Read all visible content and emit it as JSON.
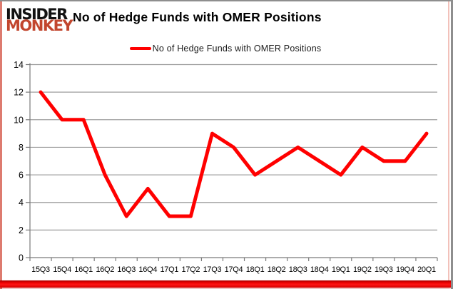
{
  "logo": {
    "line1": "INSIDER",
    "line2": "MONKEY",
    "line1_color": "#121212",
    "line2_color": "#c2462e"
  },
  "header": {
    "title": "No of Hedge Funds with OMER Positions"
  },
  "legend": {
    "label": "No of Hedge Funds with OMER Positions",
    "swatch_color": "#ff0000"
  },
  "chart_data": {
    "type": "line",
    "title": "No of Hedge Funds with OMER Positions",
    "categories": [
      "15Q3",
      "15Q4",
      "16Q1",
      "16Q2",
      "16Q3",
      "16Q4",
      "17Q1",
      "17Q2",
      "17Q3",
      "17Q4",
      "18Q1",
      "18Q2",
      "18Q3",
      "18Q4",
      "19Q1",
      "19Q2",
      "19Q3",
      "19Q4",
      "20Q1"
    ],
    "series": [
      {
        "name": "No of Hedge Funds with OMER Positions",
        "color": "#ff0000",
        "values": [
          12,
          10,
          10,
          6,
          3,
          5,
          3,
          3,
          9,
          8,
          6,
          7,
          8,
          7,
          6,
          8,
          7,
          7,
          9
        ]
      }
    ],
    "xlabel": "",
    "ylabel": "",
    "ylim": [
      0,
      14
    ],
    "yticks": [
      0,
      2,
      4,
      6,
      8,
      10,
      12,
      14
    ],
    "grid": true,
    "legend_position": "top",
    "gridline_color": "#9d9d9d",
    "axis_color": "#7a7a7a",
    "tick_label_color": "#000000"
  }
}
